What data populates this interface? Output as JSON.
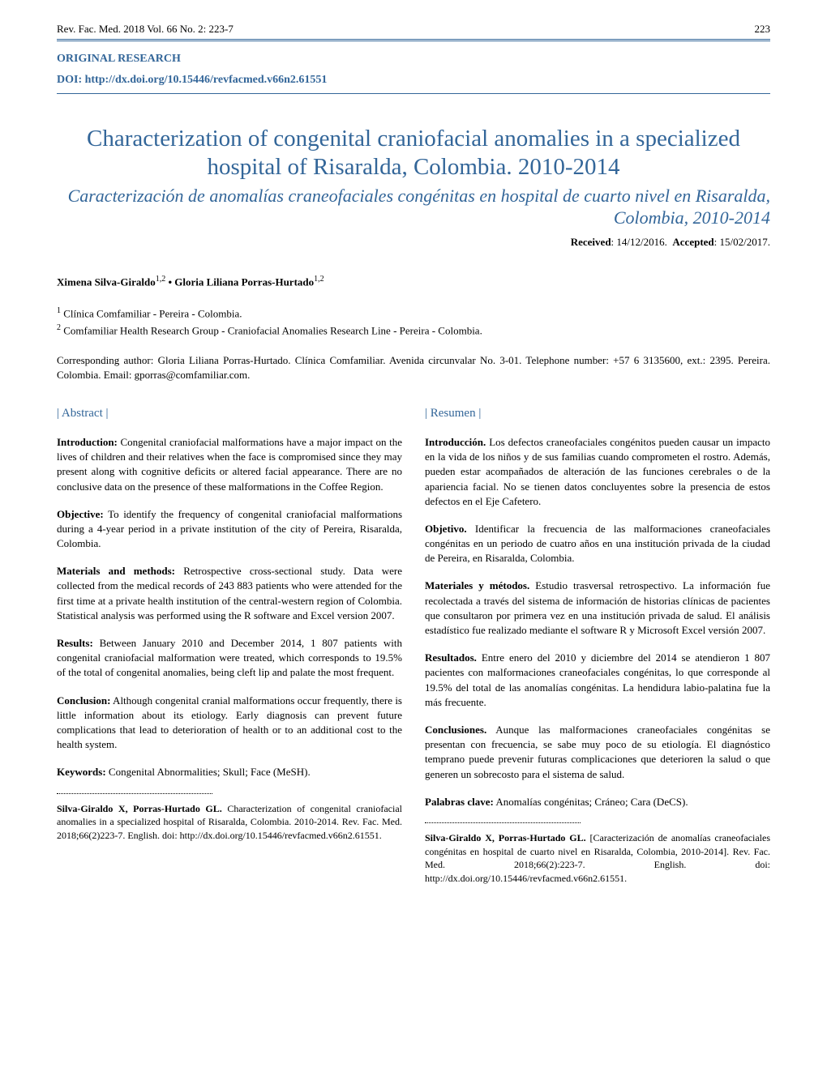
{
  "header": {
    "journal_info": "Rev. Fac. Med. 2018 Vol. 66 No. 2: 223-7",
    "page_number": "223"
  },
  "article_type": "ORIGINAL RESEARCH",
  "doi_label": "DOI: http://dx.doi.org/10.15446/revfacmed.v66n2.61551",
  "title_en": "Characterization of congenital craniofacial anomalies in a specialized hospital of Risaralda, Colombia. 2010-2014",
  "title_es": "Caracterización de anomalías craneofaciales congénitas en hospital de cuarto nivel en Risaralda, Colombia, 2010-2014",
  "dates": {
    "received_label": "Received",
    "received_date": ": 14/12/2016.",
    "accepted_label": "Accepted",
    "accepted_date": ": 15/02/2017."
  },
  "authors_line": "Ximena Silva-Giraldo1,2 • Gloria Liliana Porras-Hurtado1,2",
  "affiliations": {
    "a1": "1 Clínica Comfamiliar - Pereira - Colombia.",
    "a2": "2 Comfamiliar Health Research Group - Craniofacial Anomalies Research Line - Pereira - Colombia."
  },
  "correspondence": "Corresponding author: Gloria Liliana Porras-Hurtado. Clínica Comfamiliar. Avenida circunvalar No. 3-01. Telephone number: +57 6 3135600, ext.: 2395. Pereira. Colombia. Email: gporras@comfamiliar.com.",
  "abstract_en": {
    "heading": "| Abstract |",
    "intro_label": "Introduction:",
    "intro_text": " Congenital craniofacial malformations have a major impact on the lives of children and their relatives when the face is compromised since they may present along with cognitive deficits or altered facial appearance. There are no conclusive data on the presence of these malformations in the Coffee Region.",
    "obj_label": "Objective:",
    "obj_text": " To identify the frequency of congenital craniofacial malformations during a 4-year period in a private institution of the city of Pereira, Risaralda, Colombia.",
    "methods_label": "Materials and methods:",
    "methods_text": " Retrospective cross-sectional study. Data were collected from the medical records of 243 883 patients who were attended for the first time at a private health institution of the central-western region of Colombia. Statistical analysis was performed using the R software and Excel version 2007.",
    "results_label": "Results:",
    "results_text": " Between January 2010 and December 2014, 1 807 patients with congenital craniofacial malformation were treated, which corresponds to 19.5% of the total of congenital anomalies, being cleft lip and palate the most frequent.",
    "concl_label": "Conclusion:",
    "concl_text": " Although congenital cranial malformations occur frequently, there is little information about its etiology. Early diagnosis can prevent future complications that lead to deterioration of health or to an additional cost to the health system.",
    "keywords_label": "Keywords:",
    "keywords_text": " Congenital Abnormalities; Skull; Face (MeSH)."
  },
  "abstract_es": {
    "heading": "| Resumen |",
    "intro_label": "Introducción.",
    "intro_text": " Los defectos craneofaciales congénitos pueden causar un impacto en la vida de los niños y de sus familias cuando comprometen el rostro. Además, pueden estar acompañados de alteración de las funciones cerebrales o de la apariencia facial. No se tienen datos concluyentes sobre la presencia de estos defectos en el Eje Cafetero.",
    "obj_label": "Objetivo.",
    "obj_text": " Identificar la frecuencia de las malformaciones craneofaciales congénitas en un periodo de cuatro años en una institución privada de la ciudad de Pereira, en Risaralda, Colombia.",
    "methods_label": "Materiales y métodos.",
    "methods_text": " Estudio trasversal retrospectivo. La información fue recolectada a través del sistema de información de historias clínicas de pacientes que consultaron por primera vez en una institución privada de salud. El análisis estadístico fue realizado mediante el software R y Microsoft Excel versión 2007.",
    "results_label": "Resultados.",
    "results_text": " Entre enero del 2010 y diciembre del 2014 se atendieron 1 807 pacientes con malformaciones craneofaciales congénitas, lo que corresponde al 19.5% del total de las anomalías congénitas. La hendidura labio-palatina fue la más frecuente.",
    "concl_label": "Conclusiones.",
    "concl_text": " Aunque las malformaciones craneofaciales congénitas se presentan con frecuencia, se sabe muy poco de su etiología. El diagnóstico temprano puede prevenir futuras complicaciones que deterioren la salud o que generen un sobrecosto para el sistema de salud.",
    "keywords_label": "Palabras clave:",
    "keywords_text": " Anomalías congénitas; Cráneo; Cara (DeCS)."
  },
  "citation_en": {
    "authors": "Silva-Giraldo X, Porras-Hurtado GL.",
    "text": " Characterization of congenital craniofacial anomalies in a specialized hospital of Risaralda, Colombia. 2010-2014. Rev. Fac. Med. 2018;66(2)223-7. English. doi: http://dx.doi.org/10.15446/revfacmed.v66n2.61551."
  },
  "citation_es": {
    "authors": "Silva-Giraldo X, Porras-Hurtado GL.",
    "text": " [Caracterización de anomalías craneofaciales congénitas en hospital de cuarto nivel en Risaralda, Colombia, 2010-2014]. Rev. Fac. Med. 2018;66(2):223-7. English. doi: http://dx.doi.org/10.15446/revfacmed.v66n2.61551."
  },
  "colors": {
    "accent": "#336699",
    "text": "#000000",
    "background": "#ffffff"
  }
}
